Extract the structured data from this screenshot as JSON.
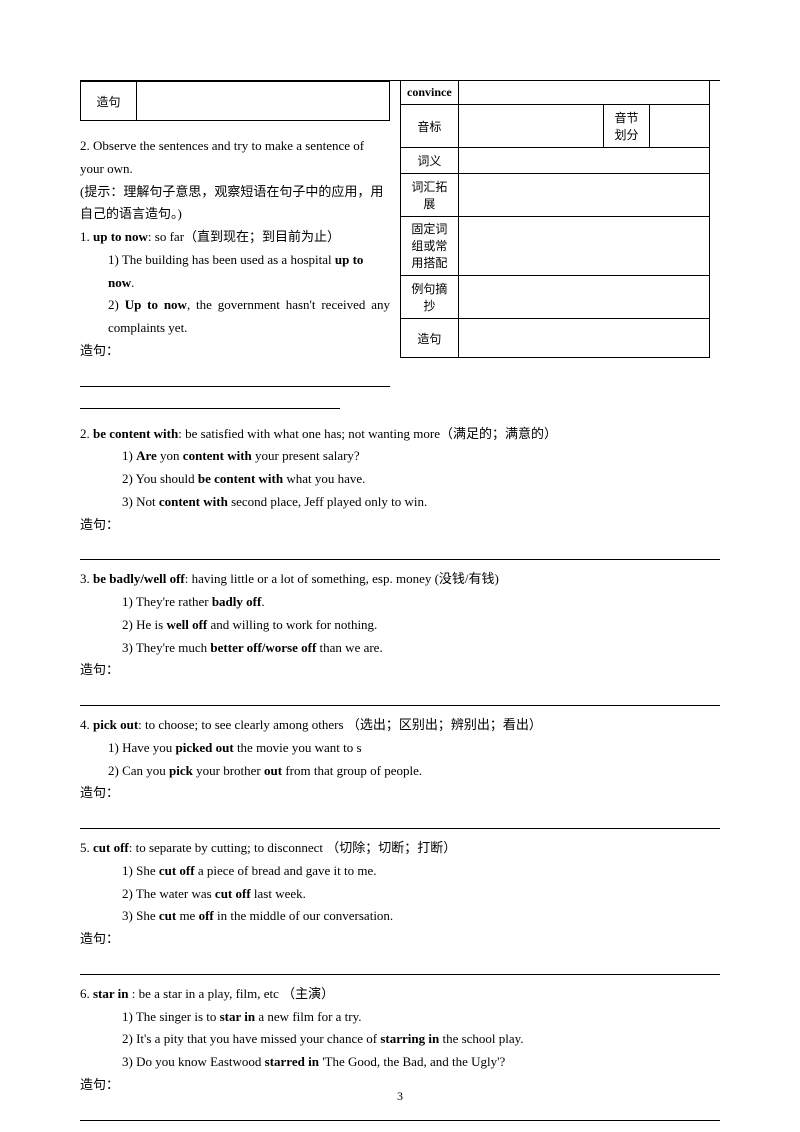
{
  "topline": true,
  "left_table_label": "造句",
  "right_table": {
    "header": "convince",
    "rows": [
      {
        "label": "音标",
        "sub": "音节划分"
      },
      {
        "label": "词义"
      },
      {
        "label": "词汇拓展"
      },
      {
        "label": "固定词组或常用搭配"
      },
      {
        "label": "例句摘抄"
      },
      {
        "label": "造句"
      }
    ]
  },
  "left_block": {
    "intro1": "2. Observe the sentences and try to make a sentence of your own.",
    "intro2": "(提示：理解句子意思，观察短语在句子中的应用，用自己的语言造句。)",
    "line1_a": "1. ",
    "line1_b": "up to now",
    "line1_c": ": so far（直到现在；到目前为止）",
    "ex1a": "1) The building has been used as a hospital ",
    "ex1b": "up to now",
    "ex1c": ".",
    "ex2a": "2) ",
    "ex2b": "Up to now",
    "ex2c": ", the government hasn't received any complaints yet.",
    "zaoju": "造句："
  },
  "entries": [
    {
      "head_a": "2. ",
      "head_b": "be content with",
      "head_c": ":    be satisfied with what one has; not wanting more（满足的；满意的）",
      "lines": [
        {
          "pre": "1)    ",
          "parts": [
            {
              "b": true,
              "t": "Are"
            },
            {
              "t": " yon "
            },
            {
              "b": true,
              "t": "content with"
            },
            {
              "t": " your present salary?"
            }
          ]
        },
        {
          "pre": "2)    ",
          "parts": [
            {
              "t": "You should "
            },
            {
              "b": true,
              "t": "be content with"
            },
            {
              "t": " what you have."
            }
          ]
        },
        {
          "pre": "3)    ",
          "parts": [
            {
              "t": "Not "
            },
            {
              "b": true,
              "t": "content with"
            },
            {
              "t": " second place, Jeff played only to win."
            }
          ]
        }
      ]
    },
    {
      "head_a": "3. ",
      "head_b": "be badly/well off",
      "head_c": ": having little or a lot of something, esp. money (没钱/有钱)",
      "lines": [
        {
          "pre": "1)    ",
          "parts": [
            {
              "t": "They're rather "
            },
            {
              "b": true,
              "t": "badly off"
            },
            {
              "t": "."
            }
          ]
        },
        {
          "pre": "2)    ",
          "parts": [
            {
              "t": "He is "
            },
            {
              "b": true,
              "t": "well off"
            },
            {
              "t": " and willing to work for nothing."
            }
          ]
        },
        {
          "pre": "3)    ",
          "parts": [
            {
              "t": "They're much "
            },
            {
              "b": true,
              "t": "better off/worse off"
            },
            {
              "t": " than we are."
            }
          ]
        }
      ]
    },
    {
      "head_a": "4. ",
      "head_b": "pick out",
      "head_c": ": to choose; to see clearly among others  （选出；区别出；辨别出；看出）",
      "lines": [
        {
          "pre": "1) ",
          "indent": "indent",
          "parts": [
            {
              "t": "Have you "
            },
            {
              "b": true,
              "t": "picked out"
            },
            {
              "t": " the movie you want to s"
            }
          ]
        },
        {
          "pre": "2) ",
          "indent": "indent",
          "parts": [
            {
              "t": "Can you "
            },
            {
              "b": true,
              "t": "pick"
            },
            {
              "t": " your brother "
            },
            {
              "b": true,
              "t": "out"
            },
            {
              "t": " from that group of people."
            }
          ]
        }
      ]
    },
    {
      "head_a": "5. ",
      "head_b": "cut off",
      "head_c": ": to separate by cutting; to disconnect  （切除；切断；打断）",
      "lines": [
        {
          "pre": "1)    ",
          "parts": [
            {
              "t": "She "
            },
            {
              "b": true,
              "t": "cut off"
            },
            {
              "t": " a piece of bread and gave it to me."
            }
          ]
        },
        {
          "pre": "2)    ",
          "parts": [
            {
              "t": "The water was "
            },
            {
              "b": true,
              "t": "cut off"
            },
            {
              "t": " last week."
            }
          ]
        },
        {
          "pre": "3)    ",
          "parts": [
            {
              "t": "She "
            },
            {
              "b": true,
              "t": "cut"
            },
            {
              "t": " me "
            },
            {
              "b": true,
              "t": "off"
            },
            {
              "t": " in the middle of our conversation."
            }
          ]
        }
      ]
    },
    {
      "head_a": "6. ",
      "head_b": "star in",
      "head_c": " : be a star in a play, film, etc  （主演）",
      "lines": [
        {
          "pre": "1)    ",
          "parts": [
            {
              "t": "The singer is to "
            },
            {
              "b": true,
              "t": "star in"
            },
            {
              "t": " a new film for a try."
            }
          ]
        },
        {
          "pre": "2)    ",
          "parts": [
            {
              "t": "It's a pity that you have missed your chance of "
            },
            {
              "b": true,
              "t": "starring in"
            },
            {
              "t": " the school play."
            }
          ]
        },
        {
          "pre": "3)    ",
          "parts": [
            {
              "t": "Do you know Eastwood "
            },
            {
              "b": true,
              "t": "starred in"
            },
            {
              "t": " 'The Good, the Bad, and the Ugly'?"
            }
          ]
        }
      ]
    }
  ],
  "zaoju_label": "造句：",
  "page_number": "3"
}
